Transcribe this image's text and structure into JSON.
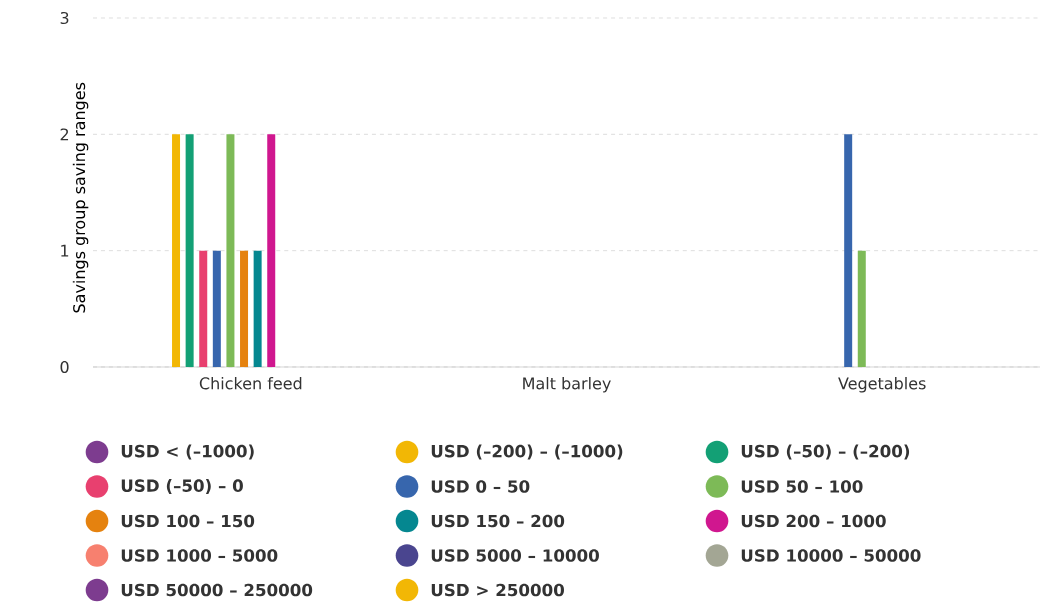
{
  "chart_data": {
    "type": "bar",
    "ylabel": "Savings group saving ranges",
    "categories": [
      "Chicken feed",
      "Malt barley",
      "Vegetables"
    ],
    "ylim": [
      0,
      3
    ],
    "yticks": [
      0,
      1,
      2,
      3
    ],
    "grid": "y",
    "legend": "bottom",
    "series": [
      {
        "name": "USD < (–1000)",
        "color": "#7d3c8f",
        "values": [
          null,
          null,
          null
        ]
      },
      {
        "name": "USD (–200) – (–1000)",
        "color": "#f2b705",
        "values": [
          2,
          null,
          null
        ]
      },
      {
        "name": "USD (–50) – (–200)",
        "color": "#13a075",
        "values": [
          2,
          null,
          null
        ]
      },
      {
        "name": "USD (–50) – 0",
        "color": "#e8406f",
        "values": [
          1,
          null,
          null
        ]
      },
      {
        "name": "USD 0 – 50",
        "color": "#3766ad",
        "values": [
          1,
          null,
          2
        ]
      },
      {
        "name": "USD 50 – 100",
        "color": "#7dba57",
        "values": [
          2,
          null,
          1
        ]
      },
      {
        "name": "USD 100 – 150",
        "color": "#e5820f",
        "values": [
          1,
          null,
          null
        ]
      },
      {
        "name": "USD 150 – 200",
        "color": "#058790",
        "values": [
          1,
          null,
          null
        ]
      },
      {
        "name": "USD 200 – 1000",
        "color": "#d0178f",
        "values": [
          2,
          null,
          null
        ]
      },
      {
        "name": "USD 1000 – 5000",
        "color": "#f7806f",
        "values": [
          null,
          null,
          null
        ]
      },
      {
        "name": "USD 5000 – 10000",
        "color": "#4a458f",
        "values": [
          null,
          null,
          null
        ]
      },
      {
        "name": "USD 10000 – 50000",
        "color": "#a3a694",
        "values": [
          null,
          null,
          null
        ]
      },
      {
        "name": "USD 50000 – 250000",
        "color": "#7d3c8f",
        "values": [
          null,
          null,
          null
        ]
      },
      {
        "name": "USD > 250000",
        "color": "#f2b705",
        "values": [
          null,
          null,
          null
        ]
      }
    ]
  }
}
